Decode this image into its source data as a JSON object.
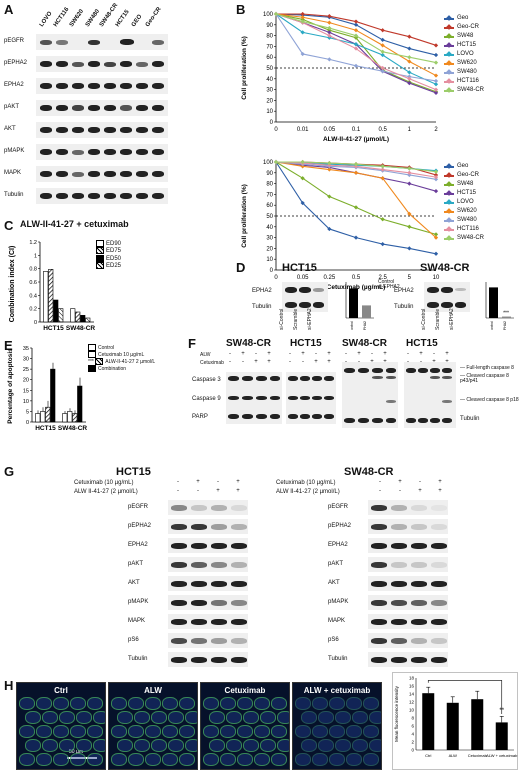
{
  "panels": {
    "A": {
      "label": "A",
      "lanes": [
        "LOVO",
        "HCT116",
        "SW620",
        "SW480",
        "SW48-CR",
        "HCT15",
        "GEO",
        "Geo-CR"
      ],
      "rows": [
        "pEGFR",
        "pEPHA2",
        "EPHA2",
        "pAKT",
        "AKT",
        "pMAPK",
        "MAPK",
        "Tubulin"
      ]
    },
    "B": {
      "label": "B",
      "legend": [
        "Geo",
        "Geo-CR",
        "SW48",
        "HCT15",
        "LOVO",
        "SW620",
        "SW480",
        "HCT116",
        "SW48-CR"
      ],
      "colors": [
        "#2e5fa6",
        "#c0392b",
        "#7cae2b",
        "#6a3d9a",
        "#2aa9c4",
        "#f0891e",
        "#8fa3d6",
        "#e58fa0",
        "#9ccd6a"
      ]
    },
    "C": {
      "label": "C",
      "title": "ALW-II-41-27 + cetuximab",
      "ylabel": "Combination index (CI)",
      "legend": [
        "ED90",
        "ED75",
        "ED50",
        "ED25"
      ],
      "groups": [
        "HCT15",
        "SW48-CR"
      ]
    },
    "D": {
      "label": "D",
      "left_title": "HCT15",
      "right_title": "SW48-CR",
      "rows": [
        "EPHA2",
        "Tubulin"
      ],
      "lanes": [
        "si-Control",
        "Scramble",
        "si-EPHA2"
      ],
      "bar_labels": [
        "si-Control",
        "si-EPHA2"
      ],
      "legend": [
        "Control",
        "si-EPHA2"
      ],
      "sig": "***"
    },
    "E": {
      "label": "E",
      "ylabel": "Percentage of apoptosis",
      "legend": [
        "Control",
        "Cetuximab 10 µg/mL",
        "ALW-II-41-27 2 µmol/L",
        "Combination"
      ],
      "groups": [
        "HCT15",
        "SW48-CR"
      ],
      "sig": "***"
    },
    "F": {
      "label": "F",
      "titles": [
        "SW48-CR",
        "HCT15",
        "SW48-CR",
        "HCT15"
      ],
      "treat_labels": [
        "ALW",
        "Cetuximab"
      ],
      "rows": [
        "Caspase 3",
        "Caspase 9",
        "PARP"
      ],
      "right_labels": [
        "Full-length caspase 8",
        "Cleaved caspase 8 p43/p41",
        "Cleaved caspase 8 p18",
        "Tubulin"
      ]
    },
    "G": {
      "label": "G",
      "left_title": "HCT15",
      "right_title": "SW48-CR",
      "treat_labels": [
        "Cetuximab (10 µg/mL)",
        "ALW II-41-27 (2 µmol/L)"
      ],
      "rows": [
        "pEGFR",
        "pEPHA2",
        "EPHA2",
        "pAKT",
        "AKT",
        "pMAPK",
        "MAPK",
        "pS6",
        "Tubulin"
      ]
    },
    "H": {
      "label": "H",
      "images": [
        "Ctrl",
        "ALW",
        "Cetuximab",
        "ALW + cetuximab"
      ],
      "scale": "50 µm",
      "ylabel": "Mean fluorescence intensity",
      "categories": [
        "Ctrl",
        "ALW",
        "Cetuximab",
        "ALW + cetuximab"
      ],
      "sig": "**"
    }
  },
  "chart_data": [
    {
      "type": "line",
      "panel": "B-top",
      "xlabel": "ALW-II-41-27 (µmol/L)",
      "ylabel": "Cell proliferation (%)",
      "categories": [
        "0",
        "0.01",
        "0.05",
        "0.1",
        "0.5",
        "1",
        "2"
      ],
      "ylim": [
        0,
        100
      ],
      "yticks": [
        0,
        10,
        20,
        30,
        40,
        50,
        60,
        70,
        80,
        90,
        100
      ],
      "series": [
        {
          "name": "Geo",
          "values": [
            100,
            99,
            97,
            90,
            76,
            68,
            62
          ]
        },
        {
          "name": "Geo-CR",
          "values": [
            100,
            100,
            98,
            93,
            85,
            79,
            71
          ]
        },
        {
          "name": "SW48",
          "values": [
            100,
            95,
            85,
            78,
            48,
            37,
            28
          ]
        },
        {
          "name": "HCT15",
          "values": [
            100,
            92,
            83,
            72,
            47,
            36,
            27
          ]
        },
        {
          "name": "LOVO",
          "values": [
            100,
            83,
            78,
            72,
            62,
            46,
            35
          ]
        },
        {
          "name": "SW620",
          "values": [
            100,
            97,
            92,
            85,
            71,
            56,
            43
          ]
        },
        {
          "name": "SW480",
          "values": [
            100,
            63,
            58,
            52,
            47,
            42,
            38
          ]
        },
        {
          "name": "HCT116",
          "values": [
            100,
            92,
            80,
            68,
            50,
            40,
            30
          ]
        },
        {
          "name": "SW48-CR",
          "values": [
            100,
            93,
            87,
            80,
            65,
            60,
            55
          ]
        }
      ]
    },
    {
      "type": "line",
      "panel": "B-bottom",
      "xlabel": "Cetuximab (µg/mL)",
      "ylabel": "Cell proliferation (%)",
      "categories": [
        "0",
        "0.05",
        "0.25",
        "0.5",
        "2.5",
        "5",
        "10"
      ],
      "ylim": [
        0,
        100
      ],
      "yticks": [
        0,
        10,
        20,
        30,
        40,
        50,
        60,
        70,
        80,
        90,
        100
      ],
      "series": [
        {
          "name": "Geo",
          "values": [
            100,
            62,
            38,
            30,
            24,
            20,
            15
          ]
        },
        {
          "name": "Geo-CR",
          "values": [
            100,
            100,
            99,
            98,
            97,
            95,
            88
          ]
        },
        {
          "name": "SW48",
          "values": [
            100,
            85,
            68,
            58,
            47,
            40,
            33
          ]
        },
        {
          "name": "HCT15",
          "values": [
            100,
            97,
            95,
            90,
            85,
            80,
            73
          ]
        },
        {
          "name": "LOVO",
          "values": [
            100,
            99,
            98,
            97,
            96,
            94,
            92
          ]
        },
        {
          "name": "SW620",
          "values": [
            100,
            96,
            93,
            90,
            85,
            52,
            30
          ]
        },
        {
          "name": "SW480",
          "values": [
            100,
            98,
            96,
            95,
            92,
            88,
            84
          ]
        },
        {
          "name": "HCT116",
          "values": [
            100,
            99,
            97,
            96,
            93,
            90,
            86
          ]
        },
        {
          "name": "SW48-CR",
          "values": [
            100,
            100,
            99,
            98,
            96,
            94,
            91
          ]
        }
      ]
    },
    {
      "type": "bar",
      "panel": "C",
      "categories": [
        "HCT15",
        "SW48-CR"
      ],
      "ylim": [
        0,
        1.2
      ],
      "yticks": [
        0,
        0.2,
        0.4,
        0.6,
        0.8,
        1,
        1.2
      ],
      "series": [
        {
          "name": "ED90",
          "values": [
            0.76,
            0.2
          ]
        },
        {
          "name": "ED75",
          "values": [
            0.79,
            0.15
          ]
        },
        {
          "name": "ED50",
          "values": [
            0.33,
            0.1
          ]
        },
        {
          "name": "ED25",
          "values": [
            0.2,
            0.06
          ]
        }
      ]
    },
    {
      "type": "bar",
      "panel": "E",
      "categories": [
        "HCT15",
        "SW48-CR"
      ],
      "ylim": [
        0,
        35
      ],
      "yticks": [
        0,
        5,
        10,
        15,
        20,
        25,
        30,
        35
      ],
      "series": [
        {
          "name": "Control",
          "values": [
            4,
            4
          ]
        },
        {
          "name": "Cetuximab 10 µg/mL",
          "values": [
            5,
            5
          ]
        },
        {
          "name": "ALW-II-41-27 2 µmol/L",
          "values": [
            7,
            4
          ]
        },
        {
          "name": "Combination",
          "values": [
            25,
            17
          ]
        }
      ]
    },
    {
      "type": "bar",
      "panel": "H",
      "categories": [
        "Ctrl",
        "ALW",
        "Cetuximab",
        "ALW + cetuximab"
      ],
      "ylim": [
        0,
        18
      ],
      "yticks": [
        0,
        2,
        4,
        6,
        8,
        10,
        12,
        14,
        16,
        18
      ],
      "values": [
        14.2,
        11.8,
        12.7,
        6.9
      ]
    }
  ]
}
